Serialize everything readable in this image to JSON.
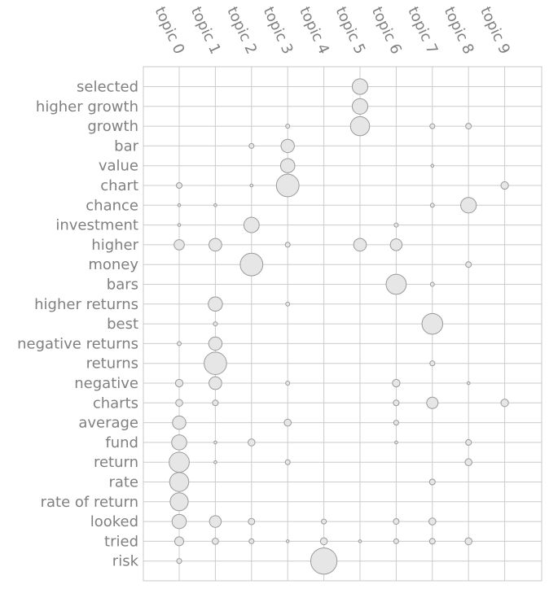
{
  "chart_data": {
    "type": "scatter",
    "subtype": "bubble-matrix",
    "title": "",
    "xlabel": "",
    "ylabel": "",
    "grid": true,
    "colors": {
      "bubble_fill": "#e6e6e6",
      "bubble_stroke": "#9a9a9a",
      "grid": "#cccccc",
      "text": "#808080"
    },
    "topics": [
      "topic 0",
      "topic 1",
      "topic 2",
      "topic 3",
      "topic 4",
      "topic 5",
      "topic 6",
      "topic 7",
      "topic 8",
      "topic 9"
    ],
    "terms": [
      "selected",
      "higher growth",
      "growth",
      "bar",
      "value",
      "chart",
      "chance",
      "investment",
      "higher",
      "money",
      "bars",
      "higher returns",
      "best",
      "negative returns",
      "returns",
      "negative",
      "charts",
      "average",
      "fund",
      "return",
      "rate",
      "rate of return",
      "looked",
      "tried",
      "risk"
    ],
    "size_unit": "relative weight (largest = 1.0)",
    "values": [
      [
        0,
        0,
        0,
        0,
        0,
        0.3,
        0,
        0,
        0,
        0
      ],
      [
        0,
        0,
        0,
        0,
        0,
        0.3,
        0,
        0,
        0,
        0
      ],
      [
        0,
        0,
        0,
        0.02,
        0,
        0.45,
        0,
        0.03,
        0.04,
        0
      ],
      [
        0,
        0,
        0.03,
        0.22,
        0,
        0,
        0,
        0,
        0,
        0
      ],
      [
        0,
        0,
        0,
        0.25,
        0,
        0,
        0,
        0.01,
        0,
        0
      ],
      [
        0.04,
        0,
        0.01,
        0.63,
        0,
        0,
        0,
        0,
        0,
        0.07
      ],
      [
        0.01,
        0.01,
        0,
        0,
        0,
        0,
        0,
        0.02,
        0.3,
        0
      ],
      [
        0.01,
        0,
        0.29,
        0,
        0,
        0,
        0.02,
        0,
        0,
        0
      ],
      [
        0.13,
        0.2,
        0,
        0.03,
        0,
        0.2,
        0.17,
        0,
        0,
        0
      ],
      [
        0,
        0,
        0.63,
        0,
        0,
        0,
        0,
        0,
        0.04,
        0
      ],
      [
        0,
        0,
        0,
        0,
        0,
        0,
        0.5,
        0.02,
        0,
        0
      ],
      [
        0,
        0.25,
        0,
        0.02,
        0,
        0,
        0,
        0,
        0,
        0
      ],
      [
        0,
        0.02,
        0,
        0,
        0,
        0,
        0,
        0.53,
        0,
        0
      ],
      [
        0.02,
        0.22,
        0,
        0,
        0,
        0,
        0,
        0,
        0,
        0
      ],
      [
        0,
        0.62,
        0,
        0,
        0,
        0,
        0,
        0.03,
        0,
        0
      ],
      [
        0.07,
        0.2,
        0,
        0.02,
        0,
        0,
        0.07,
        0,
        0.01,
        0
      ],
      [
        0.06,
        0.04,
        0,
        0,
        0,
        0,
        0.04,
        0.16,
        0,
        0.07
      ],
      [
        0.22,
        0,
        0,
        0.06,
        0,
        0,
        0.03,
        0,
        0,
        0
      ],
      [
        0.28,
        0.01,
        0.06,
        0,
        0,
        0,
        0.01,
        0,
        0.04,
        0
      ],
      [
        0.5,
        0.01,
        0,
        0.03,
        0,
        0,
        0,
        0,
        0.06,
        0
      ],
      [
        0.45,
        0,
        0,
        0,
        0,
        0,
        0,
        0.04,
        0,
        0
      ],
      [
        0.4,
        0,
        0,
        0,
        0,
        0,
        0,
        0,
        0,
        0
      ],
      [
        0.25,
        0.17,
        0.05,
        0,
        0.03,
        0,
        0.04,
        0.06,
        0,
        0
      ],
      [
        0.1,
        0.05,
        0.03,
        0.01,
        0.06,
        0.01,
        0.03,
        0.04,
        0.06,
        0
      ],
      [
        0.03,
        0,
        0,
        0,
        0.85,
        0,
        0,
        0,
        0,
        0
      ]
    ]
  }
}
